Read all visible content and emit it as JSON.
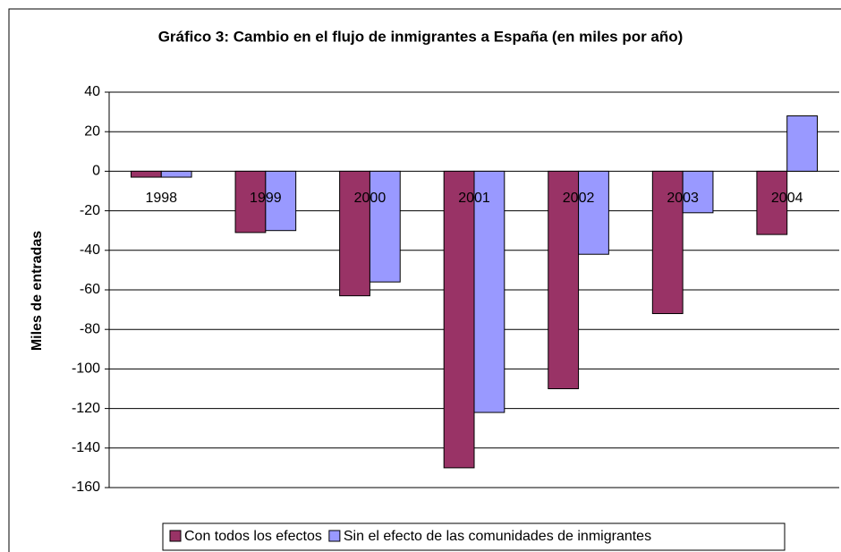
{
  "chart_data": {
    "type": "bar",
    "title": "Gráfico 3: Cambio en el flujo de inmigrantes a España (en miles por año)",
    "y_label": "Miles de entradas",
    "categories": [
      "1998",
      "1999",
      "2000",
      "2001",
      "2002",
      "2003",
      "2004"
    ],
    "series": [
      {
        "name": "Con todos los efectos",
        "color": "#993366",
        "values": [
          -3,
          -31,
          -63,
          -150,
          -110,
          -72,
          -32
        ]
      },
      {
        "name": "Sin el efecto de las comunidades de inmigrantes",
        "color": "#9999ff",
        "values": [
          -3,
          -30,
          -56,
          -122,
          -42,
          -21,
          28
        ]
      }
    ],
    "ylim": [
      -160,
      40
    ],
    "yticks": [
      -160,
      -140,
      -120,
      -100,
      -80,
      -60,
      -40,
      -20,
      0,
      20,
      40
    ],
    "grid": true
  }
}
